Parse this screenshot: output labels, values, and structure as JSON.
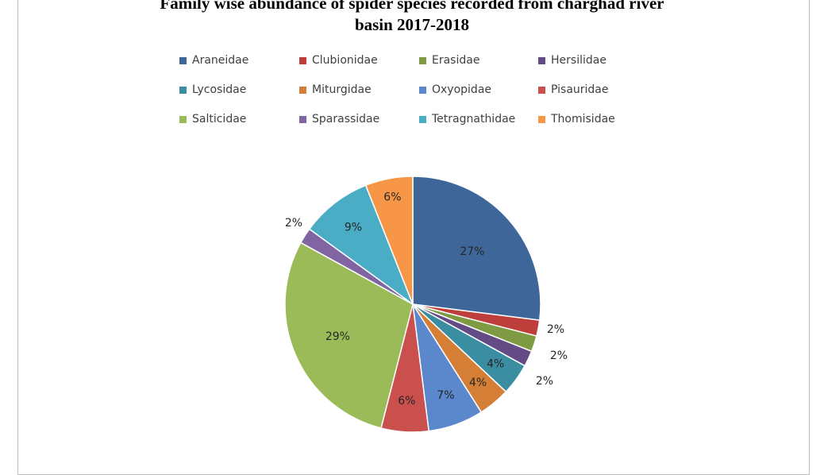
{
  "chart_data": {
    "type": "pie",
    "title": "Family wise abundance  of spider species recorded from charghad  river basin 2017-2018",
    "title_lines": [
      "Family  wise abundance  of spider  species recorded  from  charghad  river",
      "basin 2017-2018"
    ],
    "legend_position": "top",
    "slices": [
      {
        "label": "Araneidae",
        "value": 27,
        "text": "27%",
        "color": "#3F6698"
      },
      {
        "label": "Clubionidae",
        "value": 2,
        "text": "2%",
        "color": "#BE3E3B"
      },
      {
        "label": "Erasidae",
        "value": 2,
        "text": "2%",
        "color": "#7E9B43"
      },
      {
        "label": "Hersilidae",
        "value": 2,
        "text": "2%",
        "color": "#654B85"
      },
      {
        "label": "Lycosidae",
        "value": 4,
        "text": "4%",
        "color": "#3B8EA2"
      },
      {
        "label": "Miturgidae",
        "value": 4,
        "text": "4%",
        "color": "#D47F35"
      },
      {
        "label": "Oxyopidae",
        "value": 7,
        "text": "7%",
        "color": "#5B87CD"
      },
      {
        "label": "Pisauridae",
        "value": 6,
        "text": "6%",
        "color": "#C9504D"
      },
      {
        "label": "Salticidae",
        "value": 29,
        "text": "29%",
        "color": "#9BBB59"
      },
      {
        "label": "Sparassidae",
        "value": 2,
        "text": "2%",
        "color": "#8065A2"
      },
      {
        "label": "Tetragnathidae",
        "value": 9,
        "text": "9%",
        "color": "#4BACC6"
      },
      {
        "label": "Thomisidae",
        "value": 6,
        "text": "6%",
        "color": "#F79646"
      }
    ]
  }
}
